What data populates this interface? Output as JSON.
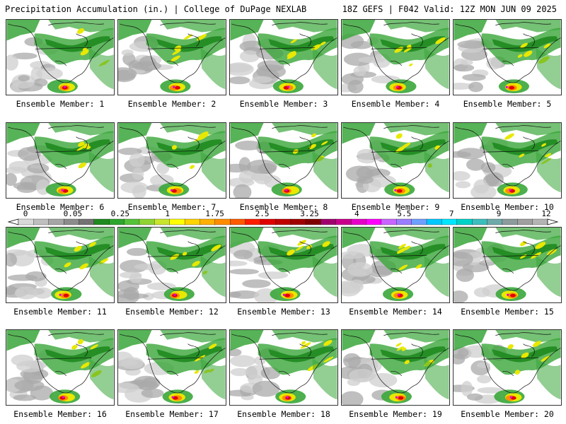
{
  "header": {
    "title": "Precipitation Accumulation (in.) | College of DuPage NEXLAB",
    "run_info": "18Z GEFS | F042 Valid: 12Z MON JUN 09 2025"
  },
  "panels": [
    {
      "label": "Ensemble Member: 1"
    },
    {
      "label": "Ensemble Member: 2"
    },
    {
      "label": "Ensemble Member: 3"
    },
    {
      "label": "Ensemble Member: 4"
    },
    {
      "label": "Ensemble Member: 5"
    },
    {
      "label": "Ensemble Member: 6"
    },
    {
      "label": "Ensemble Member: 7"
    },
    {
      "label": "Ensemble Member: 8"
    },
    {
      "label": "Ensemble Member: 9"
    },
    {
      "label": "Ensemble Member: 10"
    },
    {
      "label": "Ensemble Member: 11"
    },
    {
      "label": "Ensemble Member: 12"
    },
    {
      "label": "Ensemble Member: 13"
    },
    {
      "label": "Ensemble Member: 14"
    },
    {
      "label": "Ensemble Member: 15"
    },
    {
      "label": "Ensemble Member: 16"
    },
    {
      "label": "Ensemble Member: 17"
    },
    {
      "label": "Ensemble Member: 18"
    },
    {
      "label": "Ensemble Member: 19"
    },
    {
      "label": "Ensemble Member: 20"
    }
  ],
  "colorbar": {
    "tick_labels": [
      "0",
      "0.05",
      "0.25",
      "1",
      "1.75",
      "2.5",
      "3.25",
      "4",
      "5.5",
      "7",
      "9",
      "12"
    ],
    "colors": [
      "#d9d9d9",
      "#bfbfbf",
      "#a6a6a6",
      "#8c8c8c",
      "#737373",
      "#1f8a1f",
      "#2ea52e",
      "#55c23a",
      "#8fd433",
      "#c8e62d",
      "#ffff00",
      "#ffd400",
      "#ffb000",
      "#ff8c00",
      "#ff5a00",
      "#ff1e00",
      "#e00000",
      "#c00000",
      "#a00000",
      "#800000",
      "#a0006e",
      "#c8008c",
      "#e600c8",
      "#ff00ff",
      "#c864ff",
      "#9b7dff",
      "#6ea0ff",
      "#00c8ff",
      "#00e6ff",
      "#00d2c8",
      "#3cbebe",
      "#6eaaaa",
      "#8c9b9b",
      "#a0a0a0",
      "#b4b4b4"
    ]
  },
  "map_colors": {
    "light_gray": "#cfcfcf",
    "mid_gray": "#a9a9a9",
    "dark_green": "#1f8a1f",
    "green": "#3aa63a",
    "yellow": "#e8e800",
    "orange": "#ff8c00",
    "red": "#e00000",
    "magenta": "#e000e0"
  }
}
